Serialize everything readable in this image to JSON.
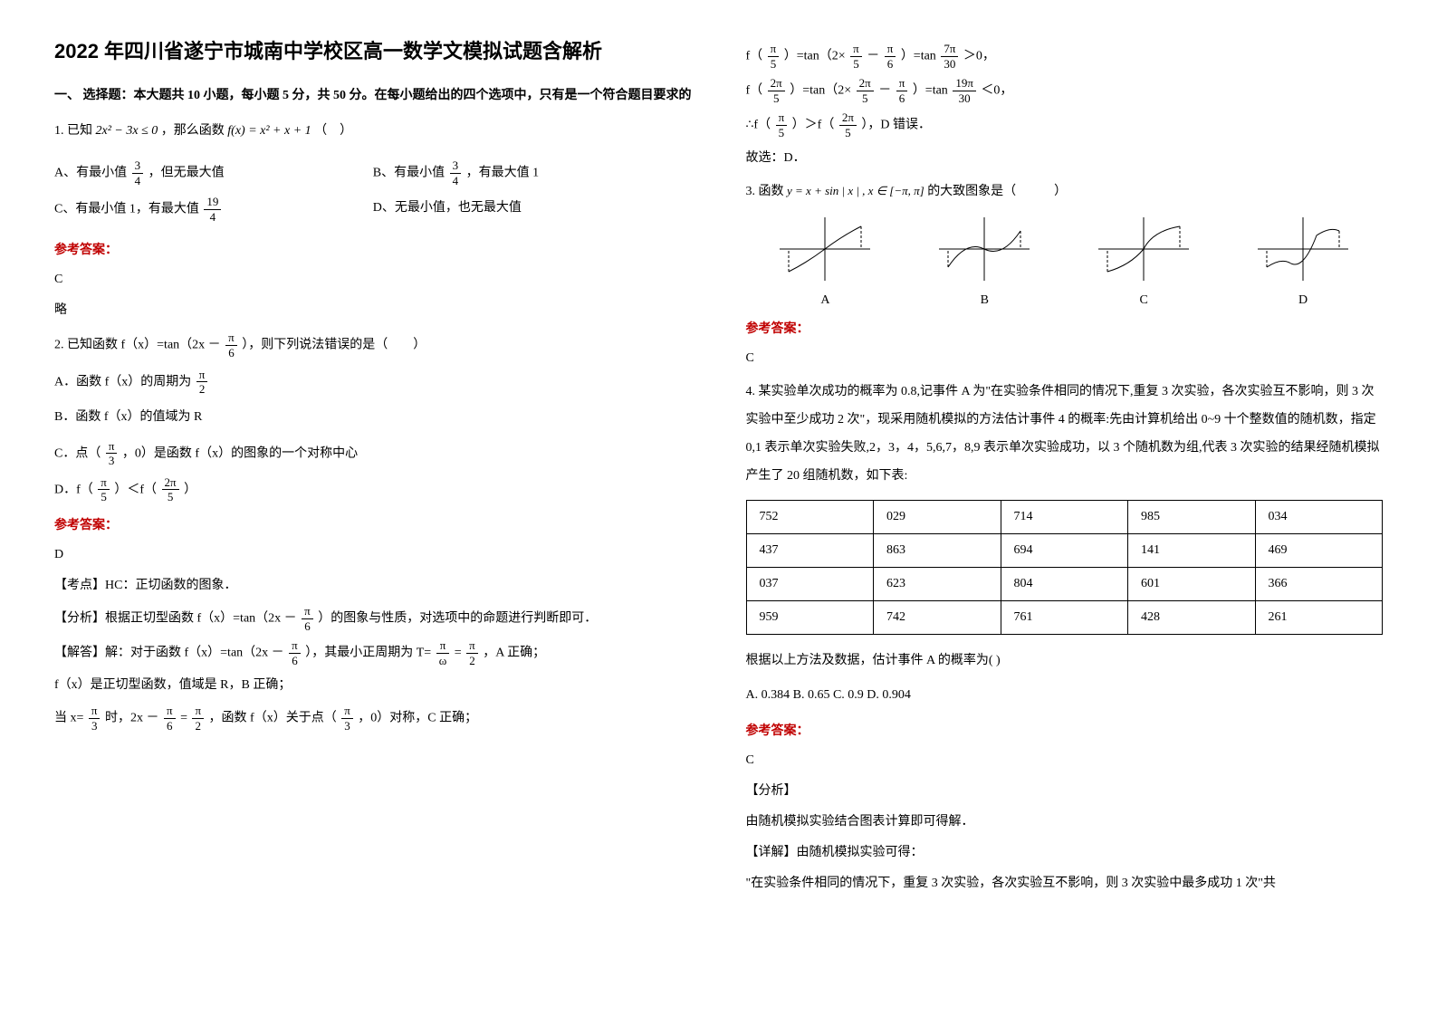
{
  "title": "2022 年四川省遂宁市城南中学校区高一数学文模拟试题含解析",
  "section1": {
    "header": "一、 选择题：本大题共 10 小题，每小题 5 分，共 50 分。在每小题给出的四个选项中，只有是一个符合题目要求的"
  },
  "q1": {
    "stem_prefix": "1. 已知",
    "stem_math": "2x² − 3x ≤ 0",
    "stem_mid": " ，那么函数 ",
    "stem_fx": "f(x) = x² + x + 1",
    "stem_suffix": "（　）",
    "optA_pre": "A、有最小值",
    "optA_post": "，但无最大值",
    "optB_pre": "B、有最小值",
    "optB_post": "，有最大值 1",
    "optC_pre": "C、有最小值 1，有最大值",
    "optD": "D、无最小值，也无最大值",
    "frac34_n": "3",
    "frac34_d": "4",
    "frac194_n": "19",
    "frac194_d": "4",
    "answer_label": "参考答案：",
    "answer": "C",
    "lue": "略"
  },
  "q2": {
    "stem_pre": "2. 已知函数 f（x）=tan（2x －",
    "stem_post": "），则下列说法错误的是（　　）",
    "pi6_n": "π",
    "pi6_d": "6",
    "A_pre": "A．函数 f（x）的周期为",
    "pi2_n": "π",
    "pi2_d": "2",
    "B": "B．函数 f（x）的值域为 R",
    "C_pre": "C．点（",
    "pi3_n": "π",
    "pi3_d": "3",
    "C_post": "，0）是函数 f（x）的图象的一个对称中心",
    "D_pre": "D．f（",
    "pi5_n": "π",
    "pi5_d": "5",
    "D_mid": "）＜f（",
    "_2pi5_n": "2π",
    "_2pi5_d": "5",
    "D_post": "）",
    "answer_label": "参考答案：",
    "answer": "D",
    "kd": "【考点】HC：正切函数的图象．",
    "fx_pre": "【分析】根据正切型函数 f（x）=tan（2x －",
    "fx_post": "）的图象与性质，对选项中的命题进行判断即可．",
    "jd_pre": "【解答】解：对于函数 f（x）=tan（2x －",
    "jd_mid": "），其最小正周期为 T= ",
    "piw_n": "π",
    "piw_d": "ω",
    "eq": " = ",
    "jd_post": " ，A 正确；",
    "line_fx": "f（x）是正切型函数，值域是 R，B 正确；",
    "sym_pre": "当 x= ",
    "sym_mid1": " 时，2x － ",
    "sym_mid2": " = ",
    "sym_post": " ，函数 f（x）关于点（",
    "sym_end": "，0）对称，C 正确；"
  },
  "q2r": {
    "l1_pre": "f（",
    "l1_mid1": "）=tan（2×",
    "l1_mid2": " － ",
    "l1_mid3": "）=tan",
    "r730_n": "7π",
    "r730_d": "30",
    "l1_post": " ＞0，",
    "l2_mid3": "）=tan",
    "r1930_n": "19π",
    "r1930_d": "30",
    "l2_post": " ＜0，",
    "l3_pre": "∴f（",
    "l3_mid": "）＞f（",
    "l3_post": "），D 错误．",
    "gx": "故选：D．"
  },
  "q3": {
    "stem_pre": "3. 函数 ",
    "stem_math": "y = x + sin | x | , x ∈ [−π, π]",
    "stem_post": " 的大致图象是（　　　）",
    "labels": [
      "A",
      "B",
      "C",
      "D"
    ],
    "answer_label": "参考答案：",
    "answer": "C",
    "graph_stroke": "#000000",
    "graph_dash": "3,2"
  },
  "q4": {
    "stem": "4. 某实验单次成功的概率为 0.8,记事件 A 为\"在实验条件相同的情况下,重复 3 次实验，各次实验互不影响，则 3 次实验中至少成功 2 次\"，现采用随机模拟的方法估计事件 4 的概率:先由计算机给出 0~9 十个整数值的随机数，指定 0,1 表示单次实验失败,2，3，4，5,6,7，8,9 表示单次实验成功，以 3 个随机数为组,代表 3 次实验的结果经随机模拟产生了 20 组随机数，如下表:",
    "table": [
      [
        "752",
        "029",
        "714",
        "985",
        "034"
      ],
      [
        "437",
        "863",
        "694",
        "141",
        "469"
      ],
      [
        "037",
        "623",
        "804",
        "601",
        "366"
      ],
      [
        "959",
        "742",
        "761",
        "428",
        "261"
      ]
    ],
    "after": "根据以上方法及数据，估计事件 A 的概率为(   )",
    "opts": "A. 0.384       B. 0.65   C. 0.9    D. 0.904",
    "answer_label": "参考答案：",
    "answer": "C",
    "fx": "【分析】",
    "fx_body": "由随机模拟实验结合图表计算即可得解．",
    "xj": "【详解】由随机模拟实验可得：",
    "xj2": "\"在实验条件相同的情况下，重复 3 次实验，各次实验互不影响，则 3 次实验中最多成功 1 次\"共"
  }
}
